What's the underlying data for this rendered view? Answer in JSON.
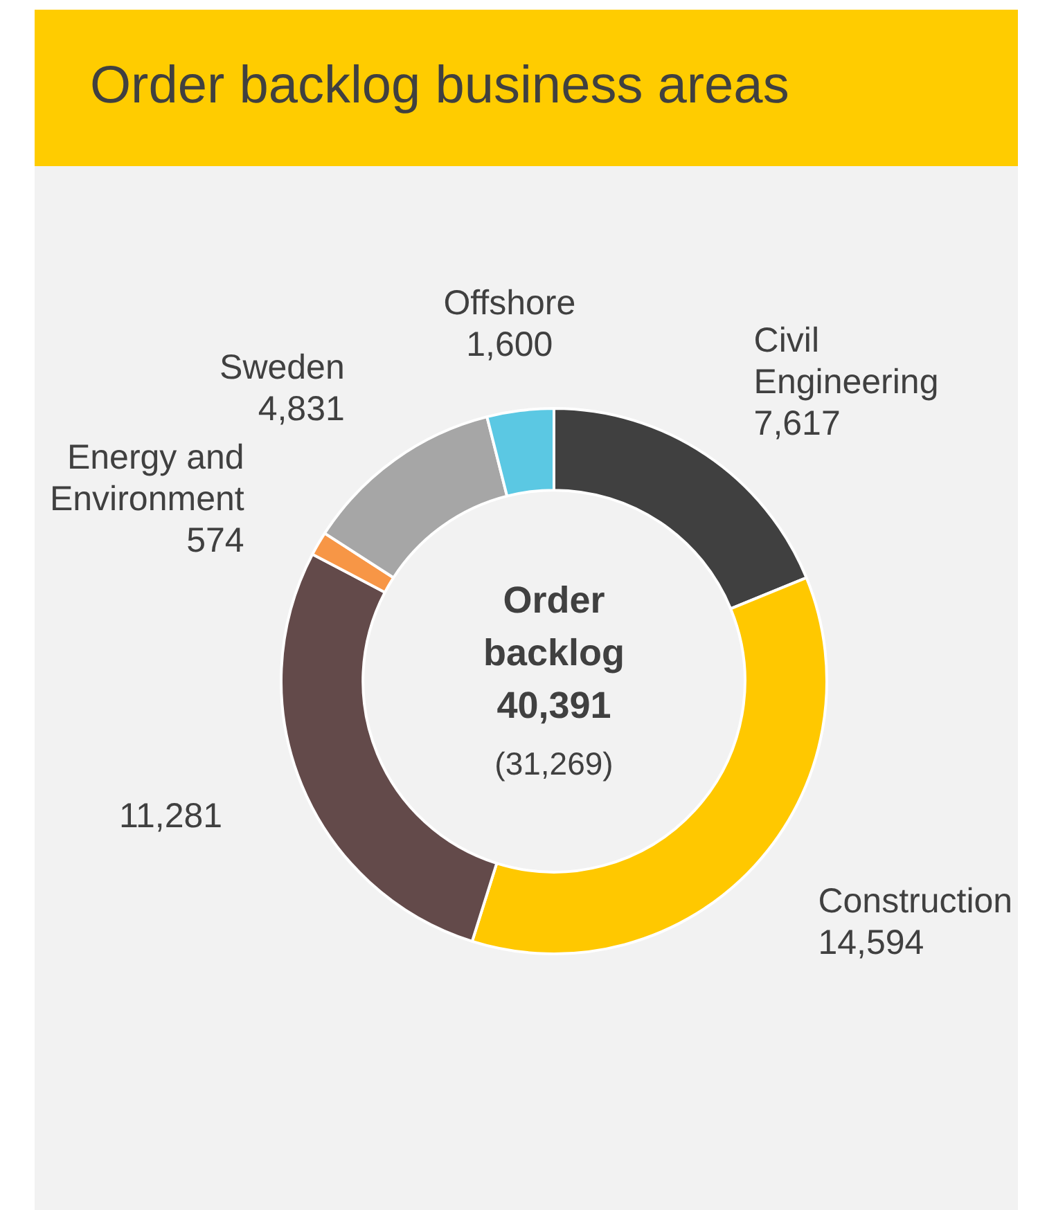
{
  "chart_data": {
    "type": "donut",
    "title": "Order backlog business areas",
    "categories": [
      "Civil Engineering",
      "Construction",
      null,
      "Energy and Environment",
      "Sweden",
      "Offshore"
    ],
    "values": [
      7617,
      14594,
      11281,
      574,
      4831,
      1600
    ],
    "value_labels": [
      "7,617",
      "14,594",
      "11,281",
      "574",
      "4,831",
      "1,600"
    ],
    "colors": [
      "#404040",
      "#ffc800",
      "#634a4a",
      "#f79646",
      "#a6a6a6",
      "#5bc8e3"
    ],
    "annotations": [
      "Order backlog",
      "40,391",
      "(31,269)"
    ],
    "legend": false
  }
}
